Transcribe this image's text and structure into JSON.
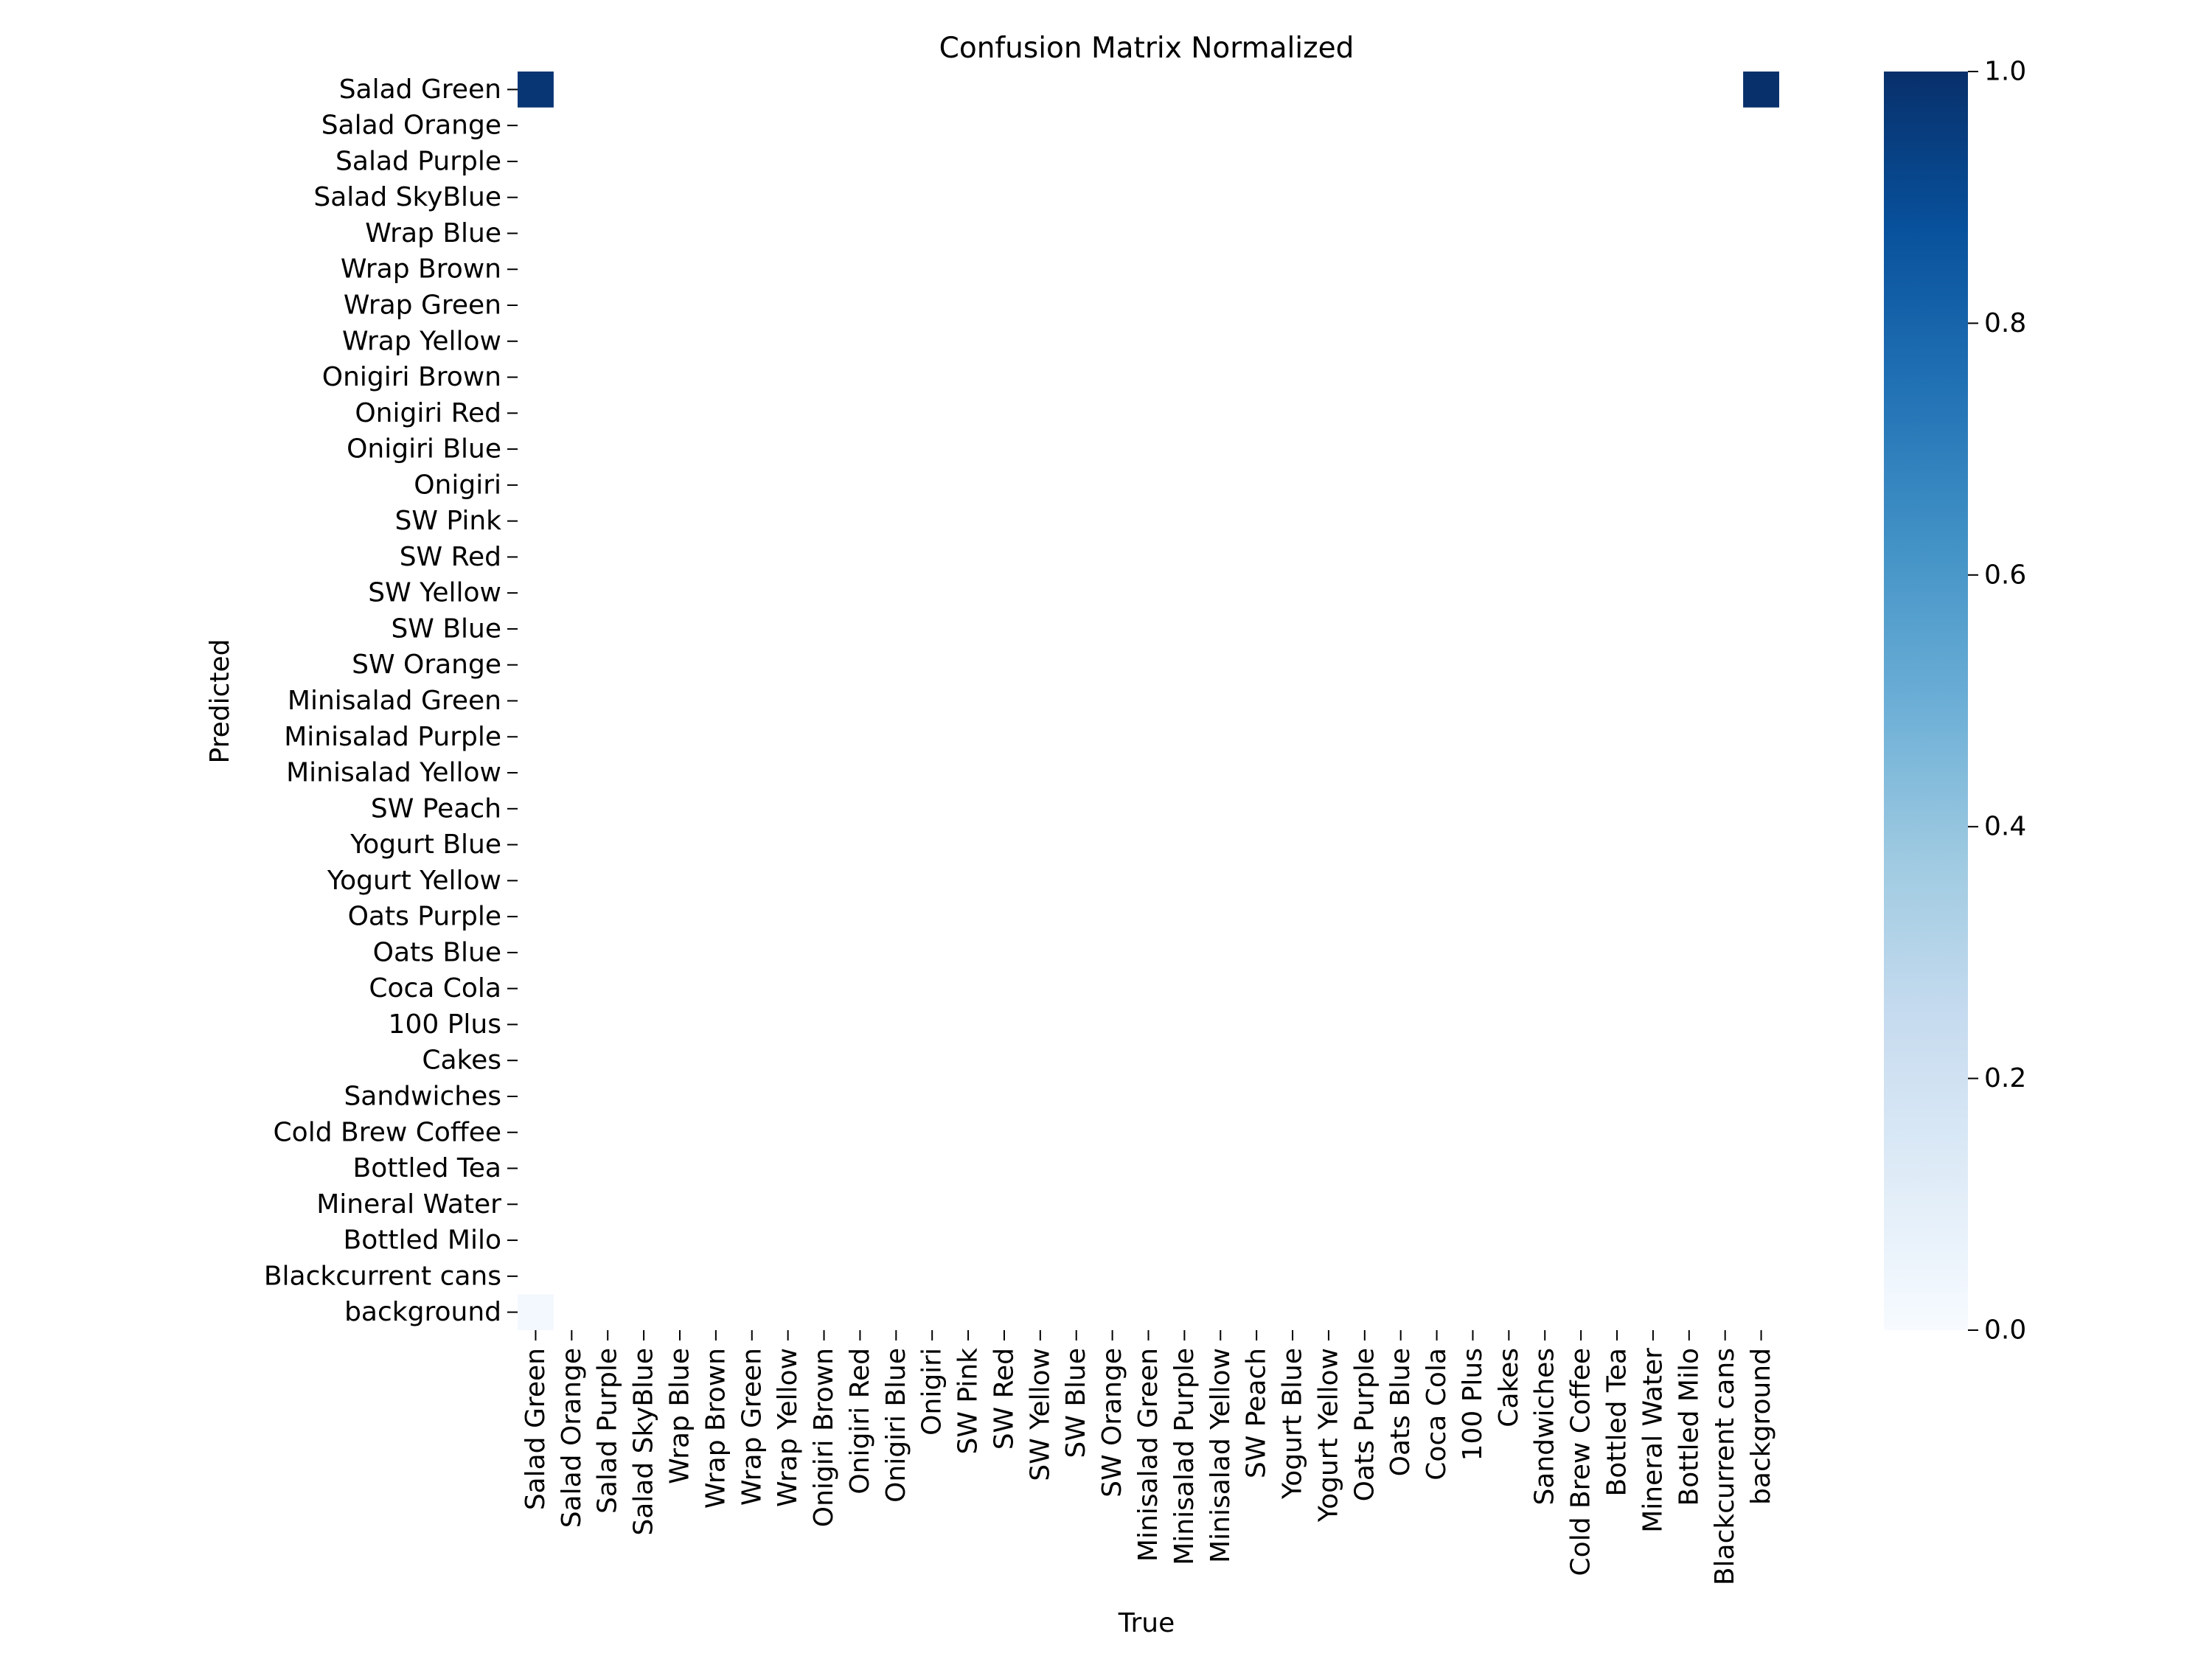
{
  "chart_data": {
    "type": "heatmap",
    "title": "Confusion Matrix Normalized",
    "xlabel": "True",
    "ylabel": "Predicted",
    "labels": [
      "Salad Green",
      "Salad Orange",
      "Salad Purple",
      "Salad SkyBlue",
      "Wrap Blue",
      "Wrap Brown",
      "Wrap Green",
      "Wrap Yellow",
      "Onigiri Brown",
      "Onigiri Red",
      "Onigiri Blue",
      "Onigiri",
      "SW Pink",
      "SW Red",
      "SW Yellow",
      "SW Blue",
      "SW Orange",
      "Minisalad Green",
      "Minisalad Purple",
      "Minisalad Yellow",
      "SW Peach",
      "Yogurt Blue",
      "Yogurt Yellow",
      "Oats Purple",
      "Oats Blue",
      "Coca Cola",
      "100 Plus",
      "Cakes",
      "Sandwiches",
      "Cold Brew Coffee",
      "Bottled Tea",
      "Mineral Water",
      "Bottled Milo",
      "Blackcurrent cans",
      "background"
    ],
    "cells": [
      {
        "row": "Salad Green",
        "col": "Salad Green",
        "value": 0.98
      },
      {
        "row": "Salad Green",
        "col": "background",
        "value": 1.0
      },
      {
        "row": "background",
        "col": "Salad Green",
        "value": 0.02
      }
    ],
    "colorbar": {
      "vmin": 0.0,
      "vmax": 1.0,
      "ticks": [
        "0.0",
        "0.2",
        "0.4",
        "0.6",
        "0.8",
        "1.0"
      ],
      "colormap": "Blues"
    }
  }
}
